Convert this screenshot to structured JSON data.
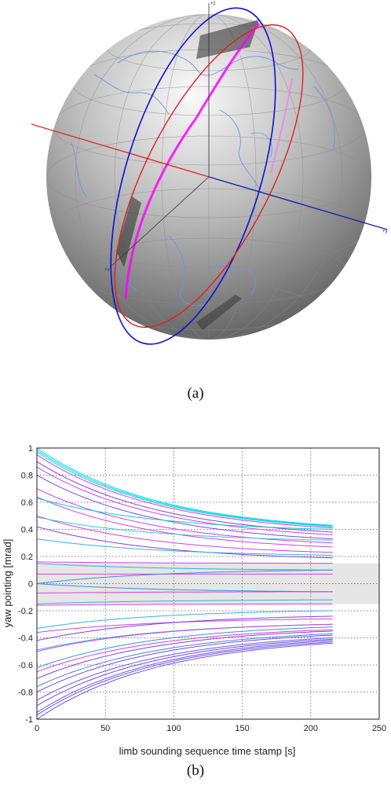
{
  "figure_a": {
    "caption": "(a)",
    "axis_labels": {
      "z": "+z",
      "y": "+y",
      "x": "+x"
    },
    "colors": {
      "orbit_1": "#1010d0",
      "orbit_2": "#e02020",
      "x_axis": "#e03030",
      "y_axis": "#1a1ab0",
      "tangent_points": "#ff00ff",
      "coastlines": "#6f93e8"
    }
  },
  "figure_b": {
    "caption": "(b)"
  },
  "chart_data": {
    "type": "line",
    "title": "",
    "xlabel": "limb sounding sequence time stamp [s]",
    "ylabel": "yaw pointing [mrad]",
    "xlim": [
      0,
      250
    ],
    "ylim": [
      -1,
      1
    ],
    "xticks": [
      0,
      50,
      100,
      150,
      200,
      250
    ],
    "yticks": [
      -1,
      -0.8,
      -0.6,
      -0.4,
      -0.2,
      0,
      0.2,
      0.4,
      0.6,
      0.8,
      1
    ],
    "grid": "dotted",
    "shaded_band": [
      -0.15,
      0.15
    ],
    "shaded_band_color": "#e6e6e6",
    "x_end": 216,
    "series_colors": [
      "#00e0e0",
      "#d040e0",
      "#4aa0e8",
      "#7a4ae0"
    ],
    "series": [
      {
        "start": 1.0,
        "end": 0.43,
        "color": "#00e0e0"
      },
      {
        "start": 0.985,
        "end": 0.425,
        "color": "#00e0e0"
      },
      {
        "start": 0.97,
        "end": 0.42,
        "color": "#30c8e8"
      },
      {
        "start": 0.95,
        "end": 0.41,
        "color": "#d040e0"
      },
      {
        "start": 0.9,
        "end": 0.38,
        "color": "#8040e0"
      },
      {
        "start": 0.86,
        "end": 0.36,
        "color": "#d040e0"
      },
      {
        "start": 0.8,
        "end": 0.33,
        "color": "#7a4ae0"
      },
      {
        "start": 0.7,
        "end": 0.3,
        "color": "#d040e0"
      },
      {
        "start": 0.64,
        "end": 0.27,
        "color": "#d040e0"
      },
      {
        "start": 0.63,
        "end": 0.4,
        "color": "#00d0d8"
      },
      {
        "start": 0.5,
        "end": 0.23,
        "color": "#d040e0"
      },
      {
        "start": 0.49,
        "end": 0.32,
        "color": "#40c0e0"
      },
      {
        "start": 0.42,
        "end": 0.19,
        "color": "#8040e0"
      },
      {
        "start": 0.33,
        "end": 0.21,
        "color": "#3ab0e0"
      },
      {
        "start": 0.16,
        "end": 0.15,
        "color": "#d040e0"
      },
      {
        "start": 0.15,
        "end": 0.1,
        "color": "#3aa8e0"
      },
      {
        "start": 0.07,
        "end": 0.07,
        "color": "#d040e0"
      },
      {
        "start": 0.0,
        "end": 0.1,
        "color": "#3a90e0"
      },
      {
        "start": 0.0,
        "end": -0.06,
        "color": "#3a90e0"
      },
      {
        "start": -0.07,
        "end": -0.06,
        "color": "#d040e0"
      },
      {
        "start": -0.15,
        "end": -0.12,
        "color": "#3aa8e0"
      },
      {
        "start": -0.16,
        "end": -0.15,
        "color": "#d040e0"
      },
      {
        "start": -0.33,
        "end": -0.2,
        "color": "#3ab0e0"
      },
      {
        "start": -0.36,
        "end": -0.26,
        "color": "#d040e0"
      },
      {
        "start": -0.42,
        "end": -0.24,
        "color": "#8040e0"
      },
      {
        "start": -0.49,
        "end": -0.3,
        "color": "#40b8e0"
      },
      {
        "start": -0.5,
        "end": -0.3,
        "color": "#d040e0"
      },
      {
        "start": -0.62,
        "end": -0.32,
        "color": "#3a90e0"
      },
      {
        "start": -0.65,
        "end": -0.34,
        "color": "#d040e0"
      },
      {
        "start": -0.7,
        "end": -0.35,
        "color": "#8040e0"
      },
      {
        "start": -0.76,
        "end": -0.37,
        "color": "#4a80e8"
      },
      {
        "start": -0.8,
        "end": -0.38,
        "color": "#7a4ae0"
      },
      {
        "start": -0.86,
        "end": -0.4,
        "color": "#6060e0"
      },
      {
        "start": -0.9,
        "end": -0.41,
        "color": "#8040e0"
      },
      {
        "start": -0.95,
        "end": -0.42,
        "color": "#5a5ae8"
      },
      {
        "start": -0.97,
        "end": -0.43,
        "color": "#7a4ae0"
      },
      {
        "start": -1.0,
        "end": -0.44,
        "color": "#6a55e0"
      }
    ]
  }
}
